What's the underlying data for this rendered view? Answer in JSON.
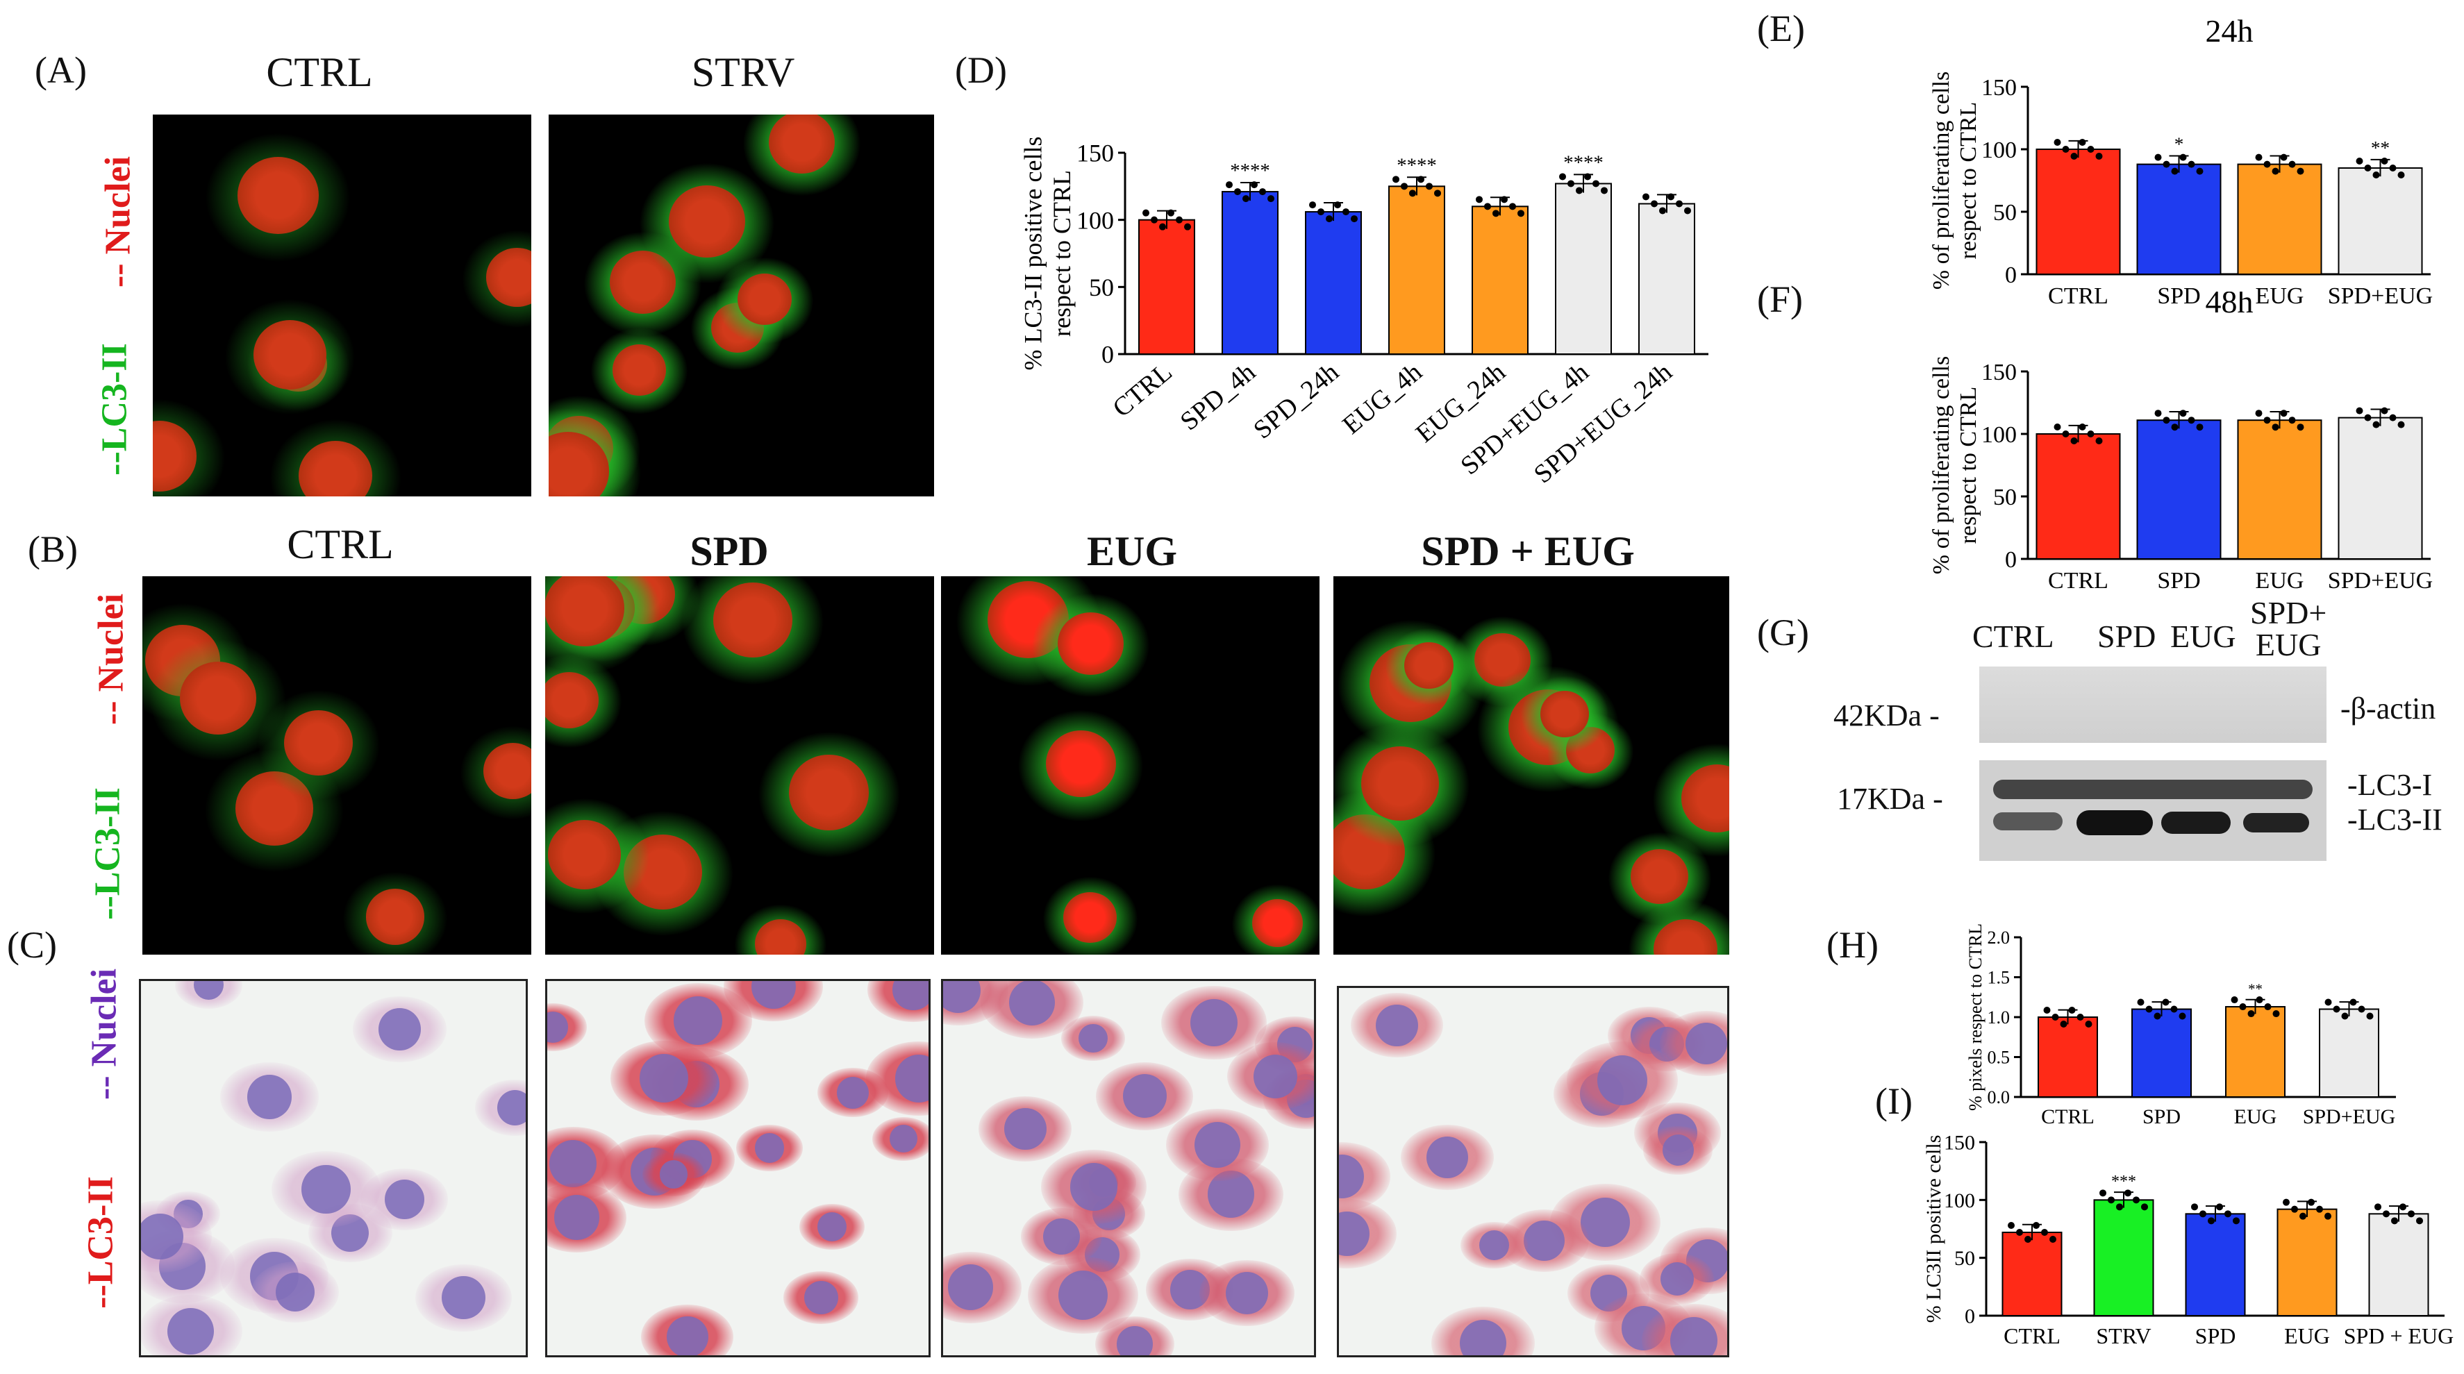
{
  "panel_letters": {
    "A": "(A)",
    "B": "(B)",
    "C": "(C)",
    "D": "(D)",
    "E": "(E)",
    "F": "(F)",
    "G": "(G)",
    "H": "(H)",
    "I": "(I)"
  },
  "panel_a": {
    "titles": [
      "CTRL",
      "STRV"
    ],
    "side_top": "-- Nuclei",
    "side_bottom": "--LC3-II"
  },
  "panel_b": {
    "titles": [
      "CTRL",
      "SPD",
      "EUG",
      "SPD + EUG"
    ],
    "side_top": "-- Nuclei",
    "side_bottom": "--LC3-II"
  },
  "panel_c": {
    "side_top": "-- Nuclei",
    "side_bottom": "--LC3-II"
  },
  "colors": {
    "red": "#ff2a17",
    "blue": "#1f3cf0",
    "orange": "#ff9a1f",
    "grey": "#ececec",
    "green": "#18f024",
    "nuclei_red": "#e01b1b",
    "lc3_green": "#15b51f",
    "nuclei_purple": "#6a2bb5"
  },
  "chart_data": [
    {
      "id": "D",
      "type": "bar",
      "ylabel_lines": [
        "% LC3-II positive cells",
        "respect to CTRL"
      ],
      "categories": [
        "CTRL",
        "SPD_4h",
        "SPD_24h",
        "EUG_4h",
        "EUG_24h",
        "SPD+EUG_4h",
        "SPD+EUG_24h"
      ],
      "values": [
        100,
        121,
        106,
        125,
        110,
        127,
        112
      ],
      "colors": [
        "#ff2a17",
        "#1f3cf0",
        "#1f3cf0",
        "#ff9a1f",
        "#ff9a1f",
        "#ececec",
        "#ececec"
      ],
      "annotations": [
        "",
        "****",
        "",
        "****",
        "",
        "****",
        ""
      ],
      "ylim": [
        0,
        150
      ],
      "yticks": [
        "0",
        "50",
        "100",
        "150"
      ]
    },
    {
      "id": "E",
      "type": "bar",
      "title": "24h",
      "ylabel_lines": [
        "% of proliferating cells",
        "respect to CTRL"
      ],
      "categories": [
        "CTRL",
        "SPD",
        "EUG",
        "SPD+EUG"
      ],
      "values": [
        100,
        88,
        88,
        85
      ],
      "colors": [
        "#ff2a17",
        "#1f3cf0",
        "#ff9a1f",
        "#ececec"
      ],
      "annotations": [
        "",
        "*",
        "",
        "**"
      ],
      "ylim": [
        0,
        150
      ],
      "yticks": [
        "0",
        "50",
        "100",
        "150"
      ]
    },
    {
      "id": "F",
      "type": "bar",
      "title": "48h",
      "ylabel_lines": [
        "% of proliferating cells",
        "respect to CTRL"
      ],
      "categories": [
        "CTRL",
        "SPD",
        "EUG",
        "SPD+EUG"
      ],
      "values": [
        100,
        111,
        111,
        113
      ],
      "colors": [
        "#ff2a17",
        "#1f3cf0",
        "#ff9a1f",
        "#ececec"
      ],
      "annotations": [
        "",
        "",
        "",
        ""
      ],
      "ylim": [
        0,
        150
      ],
      "yticks": [
        "0",
        "50",
        "100",
        "150"
      ]
    },
    {
      "id": "H",
      "type": "bar",
      "ylabel_lines": [
        "% pixels respect to CTRL"
      ],
      "categories": [
        "CTRL",
        "SPD",
        "EUG",
        "SPD+EUG"
      ],
      "values": [
        1.0,
        1.1,
        1.13,
        1.1
      ],
      "colors": [
        "#ff2a17",
        "#1f3cf0",
        "#ff9a1f",
        "#ececec"
      ],
      "annotations": [
        "",
        "",
        "**",
        ""
      ],
      "ylim": [
        0,
        2.0
      ],
      "yticks": [
        "0.0",
        "0.5",
        "1.0",
        "1.5",
        "2.0"
      ]
    },
    {
      "id": "I",
      "type": "bar",
      "ylabel_lines": [
        "% LC3II positive cells"
      ],
      "categories": [
        "CTRL",
        "STRV",
        "SPD",
        "EUG",
        "SPD + EUG"
      ],
      "values": [
        72,
        100,
        88,
        92,
        88
      ],
      "colors": [
        "#ff2a17",
        "#18f024",
        "#1f3cf0",
        "#ff9a1f",
        "#ececec"
      ],
      "annotations": [
        "",
        "***",
        "",
        "",
        ""
      ],
      "ylim": [
        0,
        150
      ],
      "yticks": [
        "0",
        "50",
        "100",
        "150"
      ]
    }
  ],
  "western_blot": {
    "lanes": [
      "CTRL",
      "SPD",
      "EUG",
      "SPD+\nEUG"
    ],
    "mw_top": "42KDa -",
    "mw_bottom": "17KDa -",
    "band_top": "-β-actin",
    "band_lc3i": "-LC3-I",
    "band_lc3ii": "-LC3-II"
  }
}
